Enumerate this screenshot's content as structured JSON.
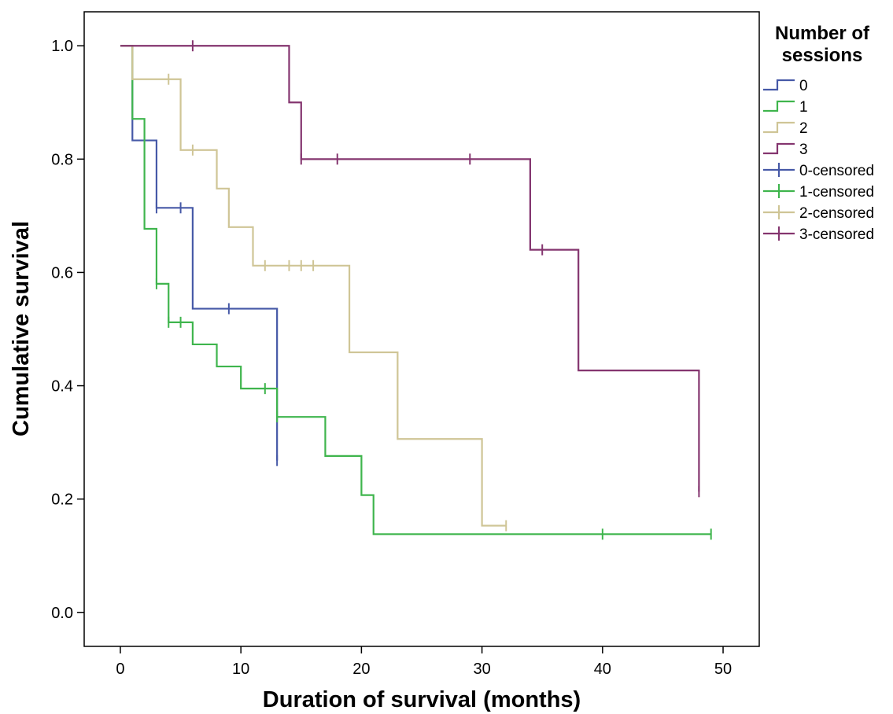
{
  "chart_data": {
    "type": "line",
    "subtype": "kaplan-meier-step",
    "xlabel": "Duration of survival (months)",
    "ylabel": "Cumulative survival",
    "xlim": [
      -3,
      53
    ],
    "ylim": [
      -0.06,
      1.06
    ],
    "xticks": [
      0,
      10,
      20,
      30,
      40,
      50
    ],
    "yticks": [
      0.0,
      0.2,
      0.4,
      0.6,
      0.8,
      1.0
    ],
    "ytick_labels": [
      "0.0",
      "0.2",
      "0.4",
      "0.6",
      "0.8",
      "1.0"
    ],
    "grid": false,
    "legend": {
      "title_lines": [
        "Number of",
        "sessions"
      ],
      "placement": "right"
    },
    "series": [
      {
        "name": "0",
        "censored_name": "0-censored",
        "color": "#4659a7",
        "steps": [
          [
            0,
            1.0
          ],
          [
            1,
            0.833
          ],
          [
            3,
            0.714
          ],
          [
            6,
            0.536
          ],
          [
            13,
            0.268
          ]
        ],
        "end_x": 13,
        "censored": [
          [
            3,
            0.714
          ],
          [
            5,
            0.714
          ],
          [
            9,
            0.536
          ],
          [
            13,
            0.268
          ]
        ]
      },
      {
        "name": "1",
        "censored_name": "1-censored",
        "color": "#3fb54d",
        "steps": [
          [
            0,
            1.0
          ],
          [
            1,
            0.871
          ],
          [
            2,
            0.677
          ],
          [
            3,
            0.58
          ],
          [
            4,
            0.512
          ],
          [
            6,
            0.473
          ],
          [
            8,
            0.434
          ],
          [
            10,
            0.395
          ],
          [
            13,
            0.345
          ],
          [
            17,
            0.276
          ],
          [
            20,
            0.207
          ],
          [
            21,
            0.138
          ]
        ],
        "end_x": 49,
        "censored": [
          [
            3,
            0.58
          ],
          [
            4,
            0.512
          ],
          [
            5,
            0.512
          ],
          [
            12,
            0.395
          ],
          [
            13,
            0.345
          ],
          [
            40,
            0.138
          ],
          [
            49,
            0.138
          ]
        ]
      },
      {
        "name": "2",
        "censored_name": "2-censored",
        "color": "#cfc596",
        "steps": [
          [
            0,
            1.0
          ],
          [
            1,
            0.941
          ],
          [
            5,
            0.816
          ],
          [
            8,
            0.748
          ],
          [
            9,
            0.68
          ],
          [
            11,
            0.612
          ],
          [
            19,
            0.459
          ],
          [
            23,
            0.306
          ],
          [
            30,
            0.153
          ]
        ],
        "end_x": 32,
        "censored": [
          [
            4,
            0.941
          ],
          [
            6,
            0.816
          ],
          [
            12,
            0.612
          ],
          [
            14,
            0.612
          ],
          [
            15,
            0.612
          ],
          [
            16,
            0.612
          ],
          [
            32,
            0.153
          ]
        ]
      },
      {
        "name": "3",
        "censored_name": "3-censored",
        "color": "#84356f",
        "steps": [
          [
            0,
            1.0
          ],
          [
            14,
            0.9
          ],
          [
            15,
            0.8
          ],
          [
            34,
            0.64
          ],
          [
            38,
            0.427
          ],
          [
            48,
            0.213
          ]
        ],
        "end_x": 48,
        "censored": [
          [
            6,
            1.0
          ],
          [
            15,
            0.8
          ],
          [
            18,
            0.8
          ],
          [
            29,
            0.8
          ],
          [
            35,
            0.64
          ],
          [
            48,
            0.213
          ]
        ]
      }
    ]
  }
}
